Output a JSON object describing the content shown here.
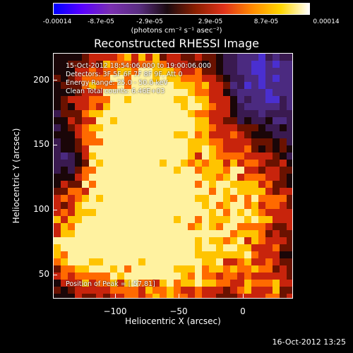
{
  "colorbar": {
    "ticks": [
      "-0.00014",
      "-8.7e-05",
      "-2.9e-05",
      "2.9e-05",
      "8.7e-05",
      "0.00014"
    ],
    "units": "(photons cm⁻² s⁻¹ asec⁻²)",
    "colors": [
      "#0000ff",
      "#5a00ff",
      "#7a2fb0",
      "#5a2e82",
      "#1a0a10",
      "#8b1f00",
      "#e0321a",
      "#ff8a00",
      "#ffd700",
      "#ffffff"
    ]
  },
  "title": "Reconstructed RHESSI Image",
  "info": {
    "time": "15-Oct-2012 18:54:06.000 to 19:00:06.000",
    "detectors": "Detectors: 3F 5F 6F 7F 8F 9F, Att 0",
    "energy": "Energy Range: 25.0 - 50.0 keV",
    "clean": "Clean     Total counts: 6.46E+03",
    "peak": "Position of Peak = [-57,81]"
  },
  "axes": {
    "xlabel": "Heliocentric X (arcsec)",
    "ylabel": "Heliocentric Y (arcsec)",
    "xticks": [
      "−100",
      "−50",
      "0"
    ],
    "yticks": [
      "200",
      "150",
      "100",
      "50"
    ]
  },
  "timestamp": "16-Oct-2012 13:25"
}
